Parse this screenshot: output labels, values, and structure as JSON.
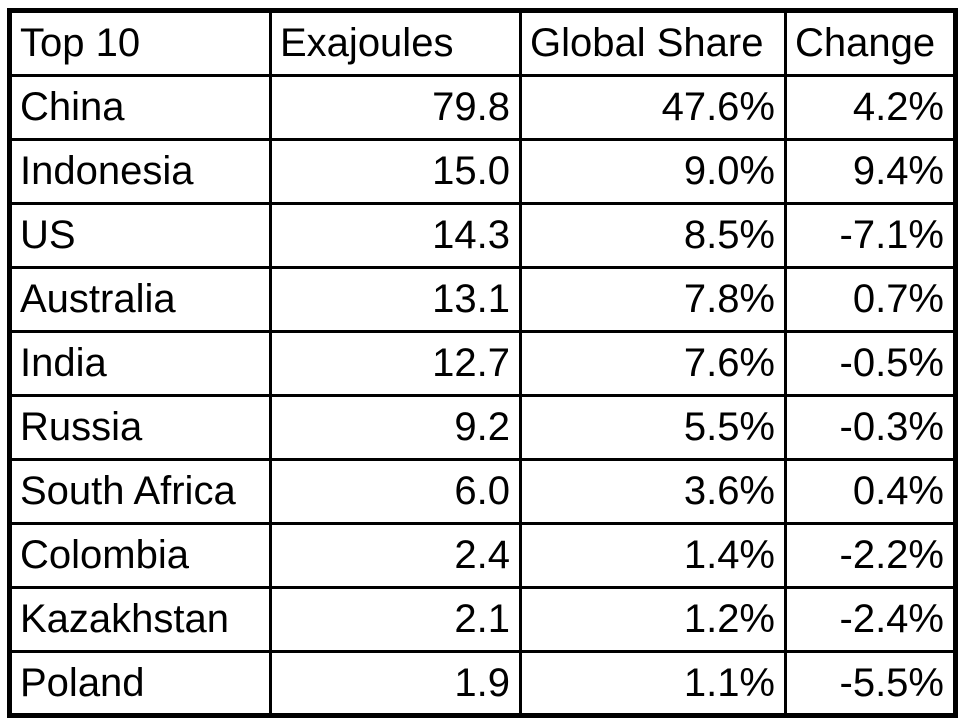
{
  "table": {
    "headers": [
      "Top 10",
      "Exajoules",
      "Global Share",
      "Change"
    ],
    "rows": [
      {
        "country": "China",
        "exajoules": "79.8",
        "global_share": "47.6%",
        "change": "4.2%"
      },
      {
        "country": "Indonesia",
        "exajoules": "15.0",
        "global_share": "9.0%",
        "change": "9.4%"
      },
      {
        "country": "US",
        "exajoules": "14.3",
        "global_share": "8.5%",
        "change": "-7.1%"
      },
      {
        "country": "Australia",
        "exajoules": "13.1",
        "global_share": "7.8%",
        "change": "0.7%"
      },
      {
        "country": "India",
        "exajoules": "12.7",
        "global_share": "7.6%",
        "change": "-0.5%"
      },
      {
        "country": "Russia",
        "exajoules": "9.2",
        "global_share": "5.5%",
        "change": "-0.3%"
      },
      {
        "country": "South Africa",
        "exajoules": "6.0",
        "global_share": "3.6%",
        "change": "0.4%"
      },
      {
        "country": "Colombia",
        "exajoules": "2.4",
        "global_share": "1.4%",
        "change": "-2.2%"
      },
      {
        "country": "Kazakhstan",
        "exajoules": "2.1",
        "global_share": "1.2%",
        "change": "-2.4%"
      },
      {
        "country": "Poland",
        "exajoules": "1.9",
        "global_share": "1.1%",
        "change": "-5.5%"
      }
    ],
    "colors": {
      "border": "#000000",
      "text": "#000000",
      "background": "#ffffff"
    }
  },
  "chart_data": {
    "type": "table",
    "title": "Top 10",
    "columns": [
      "Top 10",
      "Exajoules",
      "Global Share",
      "Change"
    ],
    "rows": [
      [
        "China",
        79.8,
        "47.6%",
        "4.2%"
      ],
      [
        "Indonesia",
        15.0,
        "9.0%",
        "9.4%"
      ],
      [
        "US",
        14.3,
        "8.5%",
        "-7.1%"
      ],
      [
        "Australia",
        13.1,
        "7.8%",
        "0.7%"
      ],
      [
        "India",
        12.7,
        "7.6%",
        "-0.5%"
      ],
      [
        "Russia",
        9.2,
        "5.5%",
        "-0.3%"
      ],
      [
        "South Africa",
        6.0,
        "3.6%",
        "0.4%"
      ],
      [
        "Colombia",
        2.4,
        "1.4%",
        "-2.2%"
      ],
      [
        "Kazakhstan",
        2.1,
        "1.2%",
        "-2.4%"
      ],
      [
        "Poland",
        1.9,
        "1.1%",
        "-5.5%"
      ]
    ]
  }
}
